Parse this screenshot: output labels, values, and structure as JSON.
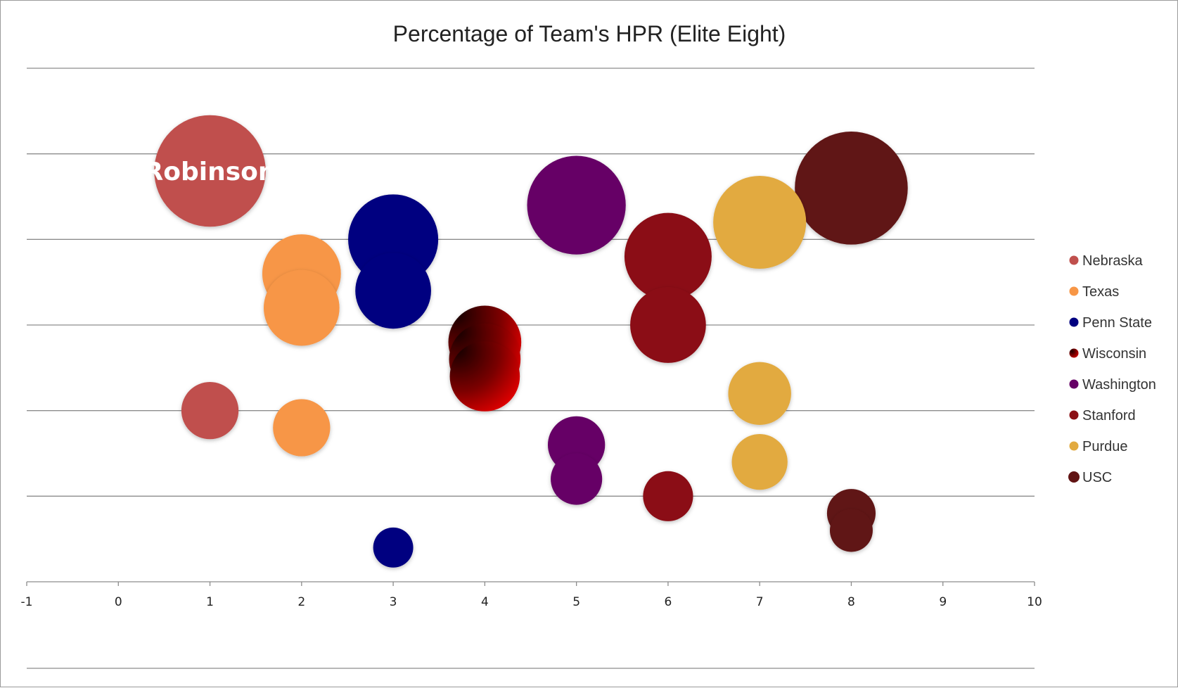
{
  "chart_data": {
    "type": "scatter",
    "subtype": "bubble",
    "title": "Percentage of Team's HPR (Elite Eight)",
    "xlabel": "",
    "ylabel": "",
    "xlim": [
      -1,
      10
    ],
    "ylim": [
      0,
      6
    ],
    "x_ticks": [
      -1,
      0,
      1,
      2,
      3,
      4,
      5,
      6,
      7,
      8,
      9,
      10
    ],
    "x_tick_labels": [
      "-1",
      "0",
      "1",
      "2",
      "3",
      "4",
      "5",
      "6",
      "7",
      "8",
      "9",
      "10"
    ],
    "y_tick_labels_shown": false,
    "grid": true,
    "legend_position": "right",
    "series": [
      {
        "name": "Nebraska",
        "color": "#C0504D",
        "points": [
          {
            "x": 1,
            "y": 4.8,
            "size": 0.78,
            "label": "Robinson"
          },
          {
            "x": 1,
            "y": 2.0,
            "size": 0.4
          }
        ]
      },
      {
        "name": "Texas",
        "color": "#F79646",
        "points": [
          {
            "x": 2,
            "y": 3.6,
            "size": 0.55
          },
          {
            "x": 2,
            "y": 3.2,
            "size": 0.53
          },
          {
            "x": 2,
            "y": 1.8,
            "size": 0.4
          }
        ]
      },
      {
        "name": "Penn State",
        "color": "#000080",
        "points": [
          {
            "x": 3,
            "y": 4.0,
            "size": 0.63
          },
          {
            "x": 3,
            "y": 3.4,
            "size": 0.53
          },
          {
            "x": 3,
            "y": 0.4,
            "size": 0.28
          }
        ]
      },
      {
        "name": "Wisconsin",
        "color": "#8B0000",
        "gradient": [
          "#1a0000",
          "#e60000"
        ],
        "points": [
          {
            "x": 4,
            "y": 2.8,
            "size": 0.51
          },
          {
            "x": 4,
            "y": 2.6,
            "size": 0.5
          },
          {
            "x": 4,
            "y": 2.4,
            "size": 0.49
          }
        ]
      },
      {
        "name": "Washington",
        "color": "#660066",
        "points": [
          {
            "x": 5,
            "y": 4.4,
            "size": 0.69
          },
          {
            "x": 5,
            "y": 1.6,
            "size": 0.4
          },
          {
            "x": 5,
            "y": 1.2,
            "size": 0.36
          }
        ]
      },
      {
        "name": "Stanford",
        "color": "#8B1015",
        "points": [
          {
            "x": 6,
            "y": 3.8,
            "size": 0.61
          },
          {
            "x": 6,
            "y": 3.0,
            "size": 0.53
          },
          {
            "x": 6,
            "y": 1.0,
            "size": 0.35
          }
        ]
      },
      {
        "name": "Purdue",
        "color": "#E2AA3F",
        "points": [
          {
            "x": 7,
            "y": 4.2,
            "size": 0.65
          },
          {
            "x": 7,
            "y": 2.2,
            "size": 0.44
          },
          {
            "x": 7,
            "y": 1.4,
            "size": 0.39
          }
        ]
      },
      {
        "name": "USC",
        "color": "#611414",
        "points": [
          {
            "x": 8,
            "y": 4.6,
            "size": 0.79
          },
          {
            "x": 8,
            "y": 0.8,
            "size": 0.34
          },
          {
            "x": 8,
            "y": 0.6,
            "size": 0.3
          }
        ]
      }
    ]
  }
}
